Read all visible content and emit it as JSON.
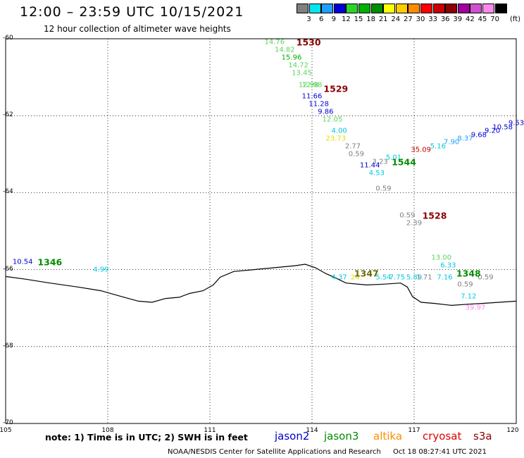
{
  "title": "12:00 – 23:59 UTC 10/15/2021",
  "subtitle": "12 hour collection of altimeter wave heights",
  "legend": {
    "unit": "(ft)",
    "bins": [
      {
        "label": "3",
        "color": "#7f7f7f"
      },
      {
        "label": "6",
        "color": "#00e5ee"
      },
      {
        "label": "9",
        "color": "#1e9fff"
      },
      {
        "label": "12",
        "color": "#0000d8"
      },
      {
        "label": "15",
        "color": "#2bd42b"
      },
      {
        "label": "18",
        "color": "#00b000"
      },
      {
        "label": "21",
        "color": "#008c00"
      },
      {
        "label": "24",
        "color": "#ffff00"
      },
      {
        "label": "27",
        "color": "#ffcc00"
      },
      {
        "label": "30",
        "color": "#ff8c00"
      },
      {
        "label": "33",
        "color": "#ff0000"
      },
      {
        "label": "36",
        "color": "#c80000"
      },
      {
        "label": "39",
        "color": "#8b0000"
      },
      {
        "label": "42",
        "color": "#a000a0"
      },
      {
        "label": "45",
        "color": "#d050d0"
      },
      {
        "label": "70",
        "color": "#ff88ee"
      },
      {
        "label": "",
        "color": "#000000"
      }
    ]
  },
  "map": {
    "lon_range": [
      105,
      120
    ],
    "lat_range": [
      -70,
      -60
    ],
    "x_ticks": [
      "105",
      "108",
      "111",
      "114",
      "117",
      "120"
    ],
    "y_ticks": [
      "-60",
      "-62",
      "-64",
      "-66",
      "-68",
      "-70"
    ]
  },
  "passes": [
    {
      "id": "1530",
      "lon": 113.9,
      "lat": -60.1,
      "color": "#8b0000"
    },
    {
      "id": "1529",
      "lon": 114.7,
      "lat": -61.3,
      "color": "#8b0000"
    },
    {
      "id": "1544",
      "lon": 116.7,
      "lat": -63.2,
      "color": "#008c00"
    },
    {
      "id": "1528",
      "lon": 117.6,
      "lat": -64.6,
      "color": "#8b0000"
    },
    {
      "id": "1346",
      "lon": 106.3,
      "lat": -65.8,
      "color": "#008c00"
    },
    {
      "id": "1347",
      "lon": 115.6,
      "lat": -66.1,
      "color": "#6b6b00"
    },
    {
      "id": "1348",
      "lon": 118.6,
      "lat": -66.1,
      "color": "#008c00"
    }
  ],
  "wave_heights": [
    {
      "v": "14.76",
      "lon": 112.9,
      "lat": -60.1,
      "color": "#5ad65a"
    },
    {
      "v": "14.82",
      "lon": 113.2,
      "lat": -60.3,
      "color": "#5ad65a"
    },
    {
      "v": "15.96",
      "lon": 113.4,
      "lat": -60.5,
      "color": "#00b000"
    },
    {
      "v": "14.72",
      "lon": 113.6,
      "lat": -60.7,
      "color": "#5ad65a"
    },
    {
      "v": "13.45",
      "lon": 113.7,
      "lat": -60.9,
      "color": "#5ad65a"
    },
    {
      "v": "12.98",
      "lon": 113.9,
      "lat": -61.2,
      "color": "#5ad65a"
    },
    {
      "v": "12.98",
      "lon": 114.0,
      "lat": -61.2,
      "color": "#5ad65a"
    },
    {
      "v": "11.66",
      "lon": 114.0,
      "lat": -61.5,
      "color": "#0000d8"
    },
    {
      "v": "11.28",
      "lon": 114.2,
      "lat": -61.7,
      "color": "#0000d8"
    },
    {
      "v": "9.86",
      "lon": 114.4,
      "lat": -61.9,
      "color": "#0000d8"
    },
    {
      "v": "12.05",
      "lon": 114.6,
      "lat": -62.1,
      "color": "#5ad65a"
    },
    {
      "v": "4.00",
      "lon": 114.8,
      "lat": -62.4,
      "color": "#00c8e0"
    },
    {
      "v": "23.73",
      "lon": 114.7,
      "lat": -62.6,
      "color": "#e0e000"
    },
    {
      "v": "2.77",
      "lon": 115.2,
      "lat": -62.8,
      "color": "#7f7f7f"
    },
    {
      "v": "0.59",
      "lon": 115.3,
      "lat": -63.0,
      "color": "#7f7f7f"
    },
    {
      "v": "3.23",
      "lon": 116.0,
      "lat": -63.2,
      "color": "#7f7f7f"
    },
    {
      "v": "5.01",
      "lon": 116.4,
      "lat": -63.1,
      "color": "#00c8e0"
    },
    {
      "v": "11.44",
      "lon": 115.7,
      "lat": -63.3,
      "color": "#0000d8"
    },
    {
      "v": "4.53",
      "lon": 115.9,
      "lat": -63.5,
      "color": "#00c8e0"
    },
    {
      "v": "0.59",
      "lon": 116.1,
      "lat": -63.9,
      "color": "#7f7f7f"
    },
    {
      "v": "35.09",
      "lon": 117.2,
      "lat": -62.9,
      "color": "#c80000"
    },
    {
      "v": "5.16",
      "lon": 117.7,
      "lat": -62.8,
      "color": "#00c8e0"
    },
    {
      "v": "7.90",
      "lon": 118.1,
      "lat": -62.7,
      "color": "#1e9fff"
    },
    {
      "v": "8.37",
      "lon": 118.5,
      "lat": -62.6,
      "color": "#1e9fff"
    },
    {
      "v": "9.68",
      "lon": 118.9,
      "lat": -62.5,
      "color": "#0000d8"
    },
    {
      "v": "9.20",
      "lon": 119.3,
      "lat": -62.4,
      "color": "#0000d8"
    },
    {
      "v": "10.58",
      "lon": 119.6,
      "lat": -62.3,
      "color": "#0000d8"
    },
    {
      "v": "9.53",
      "lon": 120.0,
      "lat": -62.2,
      "color": "#0000d8"
    },
    {
      "v": "0.59",
      "lon": 116.8,
      "lat": -64.6,
      "color": "#7f7f7f"
    },
    {
      "v": "2.39",
      "lon": 117.0,
      "lat": -64.8,
      "color": "#7f7f7f"
    },
    {
      "v": "10.54",
      "lon": 105.5,
      "lat": -65.8,
      "color": "#0000d8"
    },
    {
      "v": "4.99",
      "lon": 107.8,
      "lat": -66.0,
      "color": "#00c8e0"
    },
    {
      "v": "4.37",
      "lon": 114.8,
      "lat": -66.2,
      "color": "#00c8e0"
    },
    {
      "v": "24.",
      "lon": 115.3,
      "lat": -66.2,
      "color": "#e0e000"
    },
    {
      "v": "5.54",
      "lon": 116.1,
      "lat": -66.2,
      "color": "#00c8e0"
    },
    {
      "v": "7.75",
      "lon": 116.5,
      "lat": -66.2,
      "color": "#00c8e0"
    },
    {
      "v": "5.89",
      "lon": 117.0,
      "lat": -66.2,
      "color": "#00c8e0"
    },
    {
      "v": "13.00",
      "lon": 117.8,
      "lat": -65.7,
      "color": "#5ad65a"
    },
    {
      "v": "6.33",
      "lon": 118.0,
      "lat": -65.9,
      "color": "#00c8e0"
    },
    {
      "v": "1.71",
      "lon": 117.3,
      "lat": -66.2,
      "color": "#7f7f7f"
    },
    {
      "v": "7.16",
      "lon": 117.9,
      "lat": -66.2,
      "color": "#00c8e0"
    },
    {
      "v": "0.59",
      "lon": 119.1,
      "lat": -66.2,
      "color": "#7f7f7f"
    },
    {
      "v": "0.59",
      "lon": 118.5,
      "lat": -66.4,
      "color": "#7f7f7f"
    },
    {
      "v": "7.12",
      "lon": 118.6,
      "lat": -66.7,
      "color": "#00c8e0"
    },
    {
      "v": "39.97",
      "lon": 118.8,
      "lat": -67.0,
      "color": "#ff88ee"
    }
  ],
  "coastline": [
    [
      105.0,
      -66.18
    ],
    [
      105.6,
      -66.25
    ],
    [
      106.3,
      -66.35
    ],
    [
      107.1,
      -66.45
    ],
    [
      107.8,
      -66.55
    ],
    [
      108.4,
      -66.7
    ],
    [
      108.9,
      -66.82
    ],
    [
      109.3,
      -66.85
    ],
    [
      109.7,
      -66.75
    ],
    [
      110.1,
      -66.72
    ],
    [
      110.4,
      -66.62
    ],
    [
      110.8,
      -66.55
    ],
    [
      111.1,
      -66.4
    ],
    [
      111.3,
      -66.2
    ],
    [
      111.7,
      -66.05
    ],
    [
      112.3,
      -66.0
    ],
    [
      112.9,
      -65.95
    ],
    [
      113.5,
      -65.9
    ],
    [
      113.8,
      -65.86
    ],
    [
      114.1,
      -65.95
    ],
    [
      114.4,
      -66.1
    ],
    [
      114.7,
      -66.22
    ],
    [
      115.0,
      -66.35
    ],
    [
      115.6,
      -66.4
    ],
    [
      116.1,
      -66.38
    ],
    [
      116.6,
      -66.35
    ],
    [
      116.8,
      -66.45
    ],
    [
      116.95,
      -66.7
    ],
    [
      117.2,
      -66.85
    ],
    [
      117.6,
      -66.88
    ],
    [
      118.1,
      -66.93
    ],
    [
      118.6,
      -66.9
    ],
    [
      119.0,
      -66.88
    ],
    [
      119.5,
      -66.85
    ],
    [
      120.0,
      -66.82
    ]
  ],
  "note": "note: 1) Time is in UTC; 2) SWH is in feet",
  "satellites": [
    {
      "name": "jason2",
      "color": "#0000cc"
    },
    {
      "name": "jason3",
      "color": "#008c00"
    },
    {
      "name": "altika",
      "color": "#ff8c00"
    },
    {
      "name": "cryosat",
      "color": "#e00000"
    },
    {
      "name": "s3a",
      "color": "#8b0000"
    }
  ],
  "footer": {
    "credit": "NOAA/NESDIS Center for Satellite Applications and Research",
    "timestamp": "Oct 18 08:27:41 UTC 2021"
  }
}
